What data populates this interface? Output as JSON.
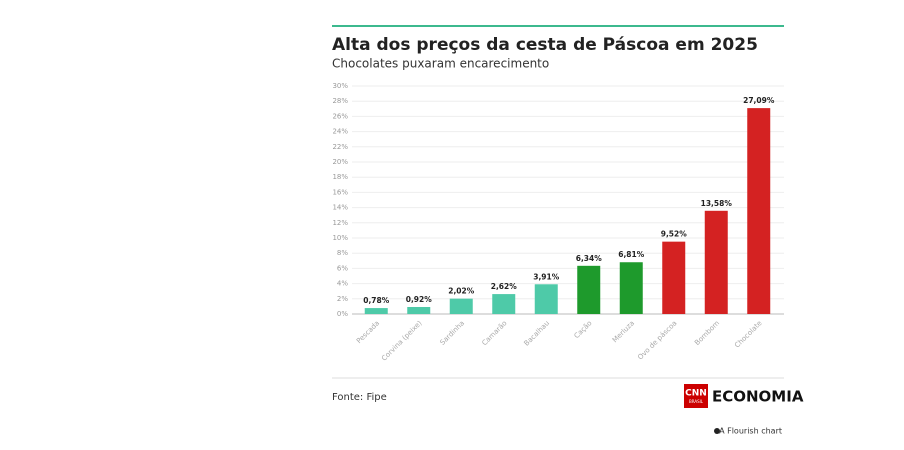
{
  "chart_data": {
    "type": "bar",
    "title": "Alta dos preços da cesta de Páscoa em 2025",
    "subtitle": "Chocolates puxaram encarecimento",
    "categories": [
      "Pescada",
      "Corvina (peixe)",
      "Sardinha",
      "Camarão",
      "Bacalhau",
      "Cação",
      "Merluza",
      "Ovo de páscoa",
      "Bombom",
      "Chocolate"
    ],
    "values": [
      0.78,
      0.92,
      2.02,
      2.62,
      3.91,
      6.34,
      6.81,
      9.52,
      13.58,
      27.09
    ],
    "value_labels": [
      "0,78%",
      "0,92%",
      "2,02%",
      "2,62%",
      "3,91%",
      "6,34%",
      "6,81%",
      "9,52%",
      "13,58%",
      "27,09%"
    ],
    "colors": [
      "#4ecaa8",
      "#4ecaa8",
      "#4ecaa8",
      "#4ecaa8",
      "#4ecaa8",
      "#1e9a2c",
      "#1e9a2c",
      "#d42222",
      "#d42222",
      "#d42222"
    ],
    "ylim": [
      0,
      30
    ],
    "yticks": [
      {
        "value": 0,
        "label": "0%"
      },
      {
        "value": 2,
        "label": "2%"
      },
      {
        "value": 4,
        "label": "4%"
      },
      {
        "value": 6,
        "label": "6%"
      },
      {
        "value": 8,
        "label": "8%"
      },
      {
        "value": 10,
        "label": "10%"
      },
      {
        "value": 12,
        "label": "12%"
      },
      {
        "value": 14,
        "label": "14%"
      },
      {
        "value": 16,
        "label": "16%"
      },
      {
        "value": 18,
        "label": "18%"
      },
      {
        "value": 20,
        "label": "20%"
      },
      {
        "value": 22,
        "label": "22%"
      },
      {
        "value": 24,
        "label": "24%"
      },
      {
        "value": 26,
        "label": "26%"
      },
      {
        "value": 28,
        "label": "28%"
      },
      {
        "value": 30,
        "label": "30%"
      }
    ],
    "grid": true,
    "source": "Fonte: Fipe",
    "logo": {
      "badge": "CNN",
      "badge_sub": "BRASIL",
      "name": "ECONOMIA"
    },
    "credit": "A Flourish chart"
  }
}
